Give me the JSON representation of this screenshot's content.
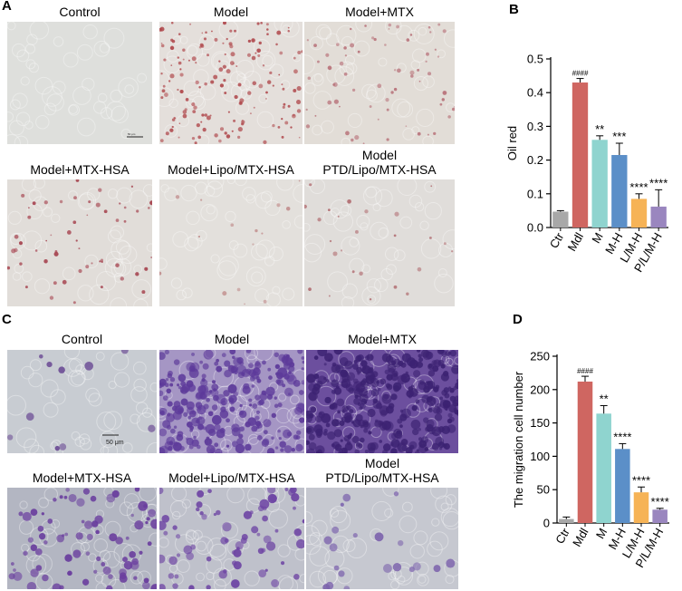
{
  "panels": {
    "a": {
      "letter": "A",
      "labels": [
        "Control",
        "Model",
        "Model+MTX",
        "Model+MTX-HSA",
        "Model+Lipo/MTX-HSA",
        "Model\nPTD/Lipo/MTX-HSA"
      ],
      "scale_bar": "50 μm"
    },
    "b": {
      "letter": "B"
    },
    "c": {
      "letter": "C",
      "labels": [
        "Control",
        "Model",
        "Model+MTX",
        "Model+MTX-HSA",
        "Model+Lipo/MTX-HSA",
        "Model\nPTD/Lipo/MTX-HSA"
      ],
      "scale_bar": "50 μm"
    },
    "d": {
      "letter": "D"
    }
  },
  "chart_data": [
    {
      "type": "bar",
      "categories": [
        "Ctr",
        "Mdl",
        "M",
        "M-H",
        "L/M-H",
        "P/L/M-H"
      ],
      "values": [
        0.047,
        0.43,
        0.26,
        0.215,
        0.085,
        0.062
      ],
      "errors": [
        0.003,
        0.012,
        0.012,
        0.035,
        0.015,
        0.05
      ],
      "annotations": [
        "",
        "####",
        "**",
        "***",
        "****",
        "****"
      ],
      "colors": [
        "#a8a8a8",
        "#cf6661",
        "#8fd4cf",
        "#5b8fc8",
        "#f6b356",
        "#9a86bf"
      ],
      "ylabel": "Oil red",
      "ylim": [
        0,
        0.5
      ],
      "yticks": [
        "0.0",
        "0.1",
        "0.2",
        "0.3",
        "0.4",
        "0.5"
      ]
    },
    {
      "type": "bar",
      "categories": [
        "Ctr",
        "Mdl",
        "M",
        "M-H",
        "L/M-H",
        "P/L/M-H"
      ],
      "values": [
        6,
        212,
        164,
        111,
        46,
        20
      ],
      "errors": [
        3,
        8,
        12,
        8,
        8,
        2
      ],
      "annotations": [
        "",
        "####",
        "**",
        "****",
        "****",
        "****"
      ],
      "colors": [
        "#a8a8a8",
        "#cf6661",
        "#8fd4cf",
        "#5b8fc8",
        "#f6b356",
        "#9a86bf"
      ],
      "ylabel": "The migration cell number",
      "ylim": [
        0,
        250
      ],
      "yticks": [
        "0",
        "50",
        "100",
        "150",
        "200",
        "250"
      ]
    }
  ]
}
